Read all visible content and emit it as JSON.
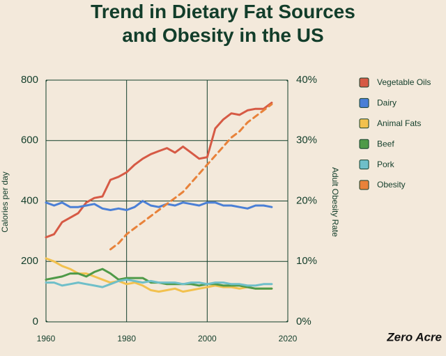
{
  "chart_data": {
    "type": "line",
    "title": "Trend in Dietary Fat Sources and Obesity in the US",
    "y_label": "Calories per day",
    "y2_label": "Adult Obesity Rate",
    "logo": "Zero Acre",
    "x": [
      1960,
      1962,
      1964,
      1966,
      1968,
      1970,
      1972,
      1974,
      1976,
      1978,
      1980,
      1982,
      1984,
      1986,
      1988,
      1990,
      1992,
      1994,
      1996,
      1998,
      2000,
      2002,
      2004,
      2006,
      2008,
      2010,
      2012,
      2014,
      2016
    ],
    "xlim": [
      1960,
      2020
    ],
    "xticks": [
      1960,
      1980,
      2000,
      2020
    ],
    "ylim": [
      0,
      800
    ],
    "yticks": [
      0,
      200,
      400,
      600,
      800
    ],
    "y2lim": [
      0,
      40
    ],
    "y2ticks": [
      {
        "value": 0,
        "label": "0%"
      },
      {
        "value": 10,
        "label": "10%"
      },
      {
        "value": 20,
        "label": "20%"
      },
      {
        "value": 30,
        "label": "30%"
      },
      {
        "value": 40,
        "label": "40%"
      }
    ],
    "grid": true,
    "legend": "right",
    "series": [
      {
        "name": "Vegetable Oils",
        "color": "#d65a45",
        "values": [
          280,
          290,
          330,
          345,
          360,
          395,
          410,
          415,
          470,
          480,
          495,
          520,
          540,
          555,
          565,
          575,
          560,
          580,
          560,
          540,
          545,
          640,
          670,
          690,
          685,
          700,
          705,
          705,
          725
        ]
      },
      {
        "name": "Dairy",
        "color": "#4a7fd6",
        "values": [
          395,
          385,
          395,
          380,
          380,
          385,
          390,
          375,
          370,
          375,
          370,
          380,
          400,
          385,
          380,
          390,
          385,
          395,
          390,
          385,
          395,
          395,
          385,
          385,
          380,
          375,
          385,
          385,
          380
        ]
      },
      {
        "name": "Animal Fats",
        "color": "#f2c14e",
        "values": [
          210,
          200,
          185,
          175,
          160,
          160,
          150,
          140,
          130,
          135,
          125,
          130,
          120,
          105,
          100,
          105,
          110,
          100,
          105,
          110,
          115,
          120,
          115,
          115,
          110,
          115,
          110,
          110,
          110
        ]
      },
      {
        "name": "Beef",
        "color": "#4f9a48",
        "values": [
          140,
          145,
          150,
          160,
          160,
          150,
          165,
          175,
          160,
          140,
          145,
          145,
          145,
          130,
          130,
          125,
          125,
          125,
          125,
          120,
          125,
          125,
          120,
          120,
          120,
          115,
          110,
          110,
          110
        ]
      },
      {
        "name": "Pork",
        "color": "#6fbfc9",
        "values": [
          130,
          130,
          120,
          125,
          130,
          125,
          120,
          115,
          125,
          135,
          140,
          135,
          130,
          135,
          130,
          130,
          130,
          125,
          130,
          130,
          125,
          130,
          130,
          125,
          125,
          120,
          120,
          125,
          125
        ]
      },
      {
        "name": "Obesity",
        "color": "#e8823a",
        "axis": "y2",
        "dashed": true,
        "values": [
          null,
          null,
          null,
          null,
          null,
          null,
          null,
          null,
          12,
          13,
          14.5,
          15.5,
          16.5,
          17.5,
          18.5,
          19.5,
          20.5,
          21.5,
          23,
          24.5,
          26,
          27.5,
          29,
          30.5,
          31.5,
          33,
          34,
          35,
          36
        ]
      }
    ]
  }
}
